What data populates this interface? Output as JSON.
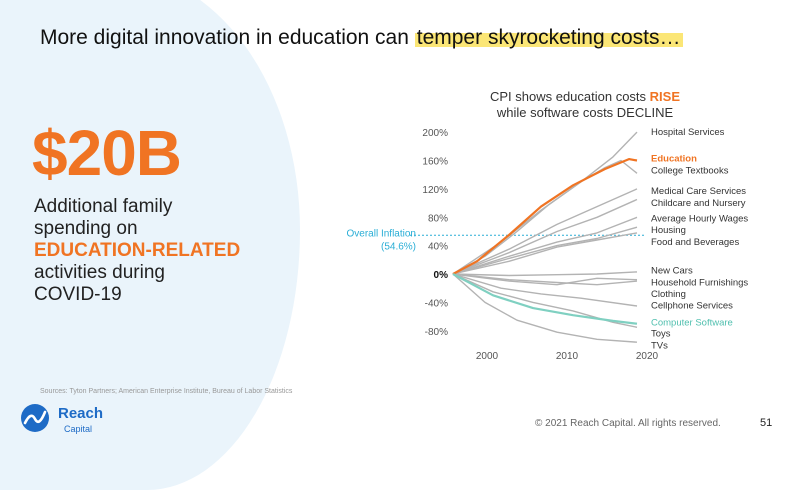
{
  "slide": {
    "title_prefix": "More digital innovation in education can ",
    "title_highlight": "temper skyrocketing costs…"
  },
  "stat": {
    "value": "$20B",
    "line1": "Additional family",
    "line2": "spending on",
    "highlight": "EDUCATION-RELATED",
    "line3": "activities during",
    "line4": "COVID-19"
  },
  "sources": "Sources: Tyton Partners; American Enterprise Institute, Bureau of Labor Statistics",
  "logo": {
    "name": "Reach",
    "sub": "Capital"
  },
  "footer": {
    "copyright": "© 2021 Reach Capital. All rights reserved.",
    "page": "51"
  },
  "colors": {
    "accent": "#f07423",
    "teal": "#7fd0c1",
    "inflation": "#2aaed6",
    "gray": "#b3b3b3",
    "brand": "#1e6bc6"
  },
  "chart_data": {
    "type": "line",
    "title_line1_prefix": "CPI shows education costs ",
    "title_line1_highlight": "RISE",
    "title_line2": "while software costs DECLINE",
    "x_range": [
      1997,
      2021
    ],
    "ylim": [
      -100,
      210
    ],
    "x_ticks": [
      {
        "value": 2000,
        "label": "2000"
      },
      {
        "value": 2010,
        "label": "2010"
      },
      {
        "value": 2020,
        "label": "2020"
      }
    ],
    "y_ticks": [
      {
        "value": 200,
        "label": "200%"
      },
      {
        "value": 160,
        "label": "160%"
      },
      {
        "value": 120,
        "label": "120%"
      },
      {
        "value": 80,
        "label": "80%"
      },
      {
        "value": 40,
        "label": "40%"
      },
      {
        "value": 0,
        "label": "0%"
      },
      {
        "value": -40,
        "label": "-40%"
      },
      {
        "value": -80,
        "label": "-80%"
      }
    ],
    "reference_line": {
      "label_line1": "Overall Inflation",
      "label_line2": "(54.6%)",
      "value": 54.6
    },
    "series": [
      {
        "name": "Hospital Services",
        "highlight": false,
        "label_y": 200,
        "x": [
          1997,
          2003,
          2008,
          2013,
          2017,
          2020
        ],
        "values": [
          0,
          45,
          90,
          130,
          165,
          200
        ]
      },
      {
        "name": "Education",
        "highlight": "accent",
        "label_y": 163,
        "x": [
          1997,
          2000,
          2004,
          2008,
          2012,
          2016,
          2019,
          2020
        ],
        "values": [
          0,
          18,
          55,
          95,
          125,
          148,
          162,
          160
        ]
      },
      {
        "name": "College Textbooks",
        "highlight": false,
        "label_y": 146,
        "x": [
          1997,
          2001,
          2005,
          2009,
          2013,
          2016,
          2018,
          2020
        ],
        "values": [
          0,
          25,
          60,
          98,
          130,
          150,
          160,
          142
        ]
      },
      {
        "name": "Medical Care Services",
        "highlight": false,
        "label_y": 117,
        "x": [
          1997,
          2004,
          2010,
          2015,
          2020
        ],
        "values": [
          0,
          35,
          70,
          95,
          120
        ]
      },
      {
        "name": "Childcare and Nursery",
        "highlight": false,
        "label_y": 100,
        "x": [
          1997,
          2004,
          2010,
          2015,
          2020
        ],
        "values": [
          0,
          30,
          60,
          80,
          105
        ]
      },
      {
        "name": "Average Hourly Wages",
        "highlight": false,
        "label_y": 78,
        "x": [
          1997,
          2004,
          2010,
          2015,
          2020
        ],
        "values": [
          0,
          25,
          45,
          58,
          80
        ]
      },
      {
        "name": "Housing",
        "highlight": false,
        "label_y": 62,
        "x": [
          1997,
          2004,
          2010,
          2015,
          2020
        ],
        "values": [
          0,
          22,
          40,
          50,
          66
        ]
      },
      {
        "name": "Food and Beverages",
        "highlight": false,
        "label_y": 45,
        "x": [
          1997,
          2004,
          2010,
          2015,
          2020
        ],
        "values": [
          0,
          18,
          38,
          48,
          58
        ]
      },
      {
        "name": "New Cars",
        "highlight": false,
        "label_y": 5,
        "x": [
          1997,
          2004,
          2010,
          2015,
          2020
        ],
        "values": [
          0,
          -2,
          -1,
          0,
          3
        ]
      },
      {
        "name": "Household Furnishings",
        "highlight": false,
        "label_y": -12,
        "x": [
          1997,
          2004,
          2010,
          2015,
          2020
        ],
        "values": [
          0,
          -8,
          -12,
          -15,
          -10
        ]
      },
      {
        "name": "Clothing",
        "highlight": false,
        "label_y": -28,
        "x": [
          1997,
          2004,
          2010,
          2015,
          2020
        ],
        "values": [
          0,
          -10,
          -15,
          -6,
          -8
        ]
      },
      {
        "name": "Cellphone Services",
        "highlight": false,
        "label_y": -44,
        "x": [
          1997,
          2003,
          2008,
          2013,
          2020
        ],
        "values": [
          0,
          -20,
          -28,
          -34,
          -45
        ]
      },
      {
        "name": "Computer Software",
        "highlight": "teal",
        "label_y": -68,
        "x": [
          1997,
          2002,
          2007,
          2012,
          2017,
          2020
        ],
        "values": [
          0,
          -30,
          -48,
          -58,
          -66,
          -70
        ]
      },
      {
        "name": "Toys",
        "highlight": false,
        "label_y": -84,
        "x": [
          1997,
          2002,
          2007,
          2012,
          2017,
          2020
        ],
        "values": [
          0,
          -25,
          -40,
          -52,
          -68,
          -75
        ]
      },
      {
        "name": "TVs",
        "highlight": false,
        "label_y": -101,
        "x": [
          1997,
          2001,
          2005,
          2010,
          2015,
          2020
        ],
        "values": [
          0,
          -40,
          -65,
          -82,
          -92,
          -96
        ]
      }
    ]
  }
}
